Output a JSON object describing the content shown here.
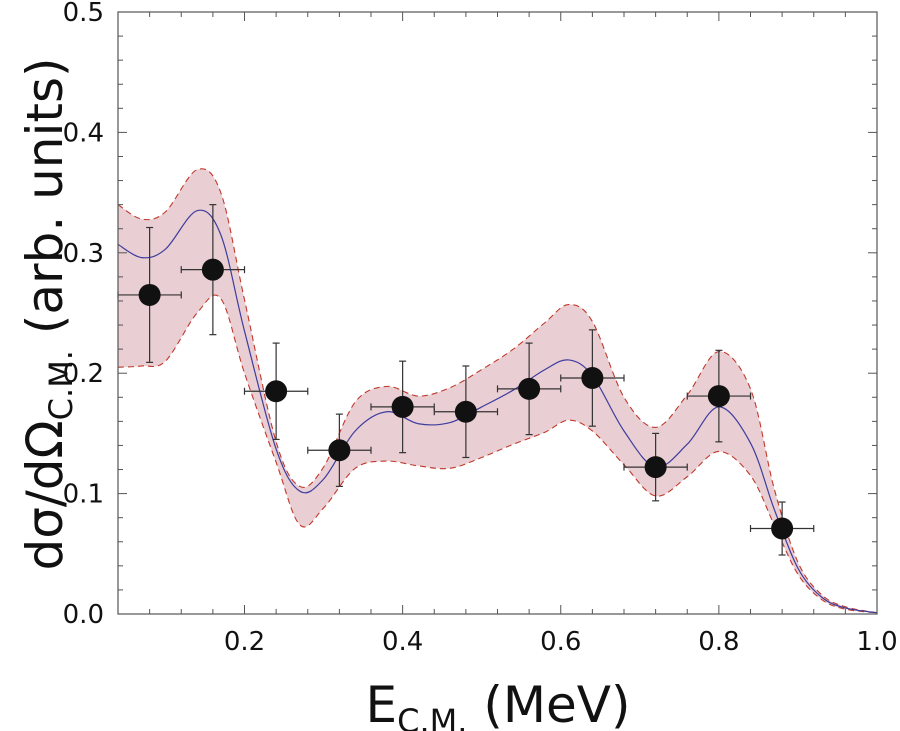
{
  "chart_data": {
    "type": "scatter",
    "xlabel": {
      "main": "E",
      "sub": "C.M.",
      "rest": " (MeV)"
    },
    "ylabel": {
      "main": "dσ/dΩ",
      "sub": "C.M.",
      "rest": " (arb. units)"
    },
    "xlim": [
      0.04,
      1.0
    ],
    "ylim": [
      0.0,
      0.5
    ],
    "x_ticks": [
      0.2,
      0.4,
      0.6,
      0.8,
      1.0
    ],
    "x_tick_labels": [
      "0.2",
      "0.4",
      "0.6",
      "0.8",
      "1.0"
    ],
    "y_ticks": [
      0.0,
      0.1,
      0.2,
      0.3,
      0.4,
      0.5
    ],
    "y_tick_labels": [
      "0.0",
      "0.1",
      "0.2",
      "0.3",
      "0.4",
      "0.5"
    ],
    "points": [
      {
        "x": 0.08,
        "y": 0.265,
        "xerr": 0.04,
        "yerr": 0.056
      },
      {
        "x": 0.16,
        "y": 0.286,
        "xerr": 0.04,
        "yerr": 0.054
      },
      {
        "x": 0.24,
        "y": 0.185,
        "xerr": 0.04,
        "yerr": 0.04
      },
      {
        "x": 0.32,
        "y": 0.136,
        "xerr": 0.04,
        "yerr": 0.03
      },
      {
        "x": 0.4,
        "y": 0.172,
        "xerr": 0.04,
        "yerr": 0.038
      },
      {
        "x": 0.48,
        "y": 0.168,
        "xerr": 0.04,
        "yerr": 0.038
      },
      {
        "x": 0.56,
        "y": 0.187,
        "xerr": 0.04,
        "yerr": 0.038
      },
      {
        "x": 0.64,
        "y": 0.196,
        "xerr": 0.04,
        "yerr": 0.04
      },
      {
        "x": 0.72,
        "y": 0.122,
        "xerr": 0.04,
        "yerr": 0.028
      },
      {
        "x": 0.8,
        "y": 0.181,
        "xerr": 0.04,
        "yerr": 0.038
      },
      {
        "x": 0.88,
        "y": 0.071,
        "xerr": 0.04,
        "yerr": 0.022
      }
    ],
    "fit_curve": {
      "x": [
        0.04,
        0.07,
        0.1,
        0.14,
        0.17,
        0.2,
        0.24,
        0.27,
        0.3,
        0.34,
        0.38,
        0.42,
        0.46,
        0.5,
        0.54,
        0.58,
        0.61,
        0.64,
        0.68,
        0.72,
        0.76,
        0.8,
        0.84,
        0.87,
        0.9,
        0.93,
        0.96,
        1.0
      ],
      "y": [
        0.307,
        0.296,
        0.303,
        0.335,
        0.315,
        0.235,
        0.137,
        0.102,
        0.112,
        0.152,
        0.168,
        0.158,
        0.159,
        0.172,
        0.186,
        0.203,
        0.211,
        0.198,
        0.152,
        0.122,
        0.141,
        0.172,
        0.142,
        0.087,
        0.038,
        0.014,
        0.005,
        0.001
      ]
    },
    "upper_band": {
      "x": [
        0.04,
        0.07,
        0.1,
        0.14,
        0.17,
        0.2,
        0.24,
        0.27,
        0.3,
        0.34,
        0.38,
        0.42,
        0.46,
        0.5,
        0.54,
        0.58,
        0.61,
        0.64,
        0.68,
        0.72,
        0.76,
        0.8,
        0.84,
        0.87,
        0.9,
        0.93,
        0.96,
        1.0
      ],
      "y": [
        0.34,
        0.328,
        0.334,
        0.369,
        0.35,
        0.261,
        0.143,
        0.106,
        0.122,
        0.176,
        0.189,
        0.181,
        0.188,
        0.203,
        0.22,
        0.242,
        0.257,
        0.243,
        0.18,
        0.155,
        0.182,
        0.218,
        0.187,
        0.104,
        0.043,
        0.016,
        0.006,
        0.001
      ]
    },
    "lower_band": {
      "x": [
        0.04,
        0.07,
        0.1,
        0.14,
        0.17,
        0.2,
        0.24,
        0.27,
        0.3,
        0.34,
        0.38,
        0.42,
        0.46,
        0.5,
        0.54,
        0.58,
        0.61,
        0.64,
        0.68,
        0.72,
        0.76,
        0.8,
        0.84,
        0.87,
        0.9,
        0.93,
        0.96,
        1.0
      ],
      "y": [
        0.205,
        0.206,
        0.21,
        0.25,
        0.262,
        0.2,
        0.126,
        0.074,
        0.088,
        0.121,
        0.127,
        0.123,
        0.121,
        0.13,
        0.141,
        0.151,
        0.161,
        0.152,
        0.124,
        0.098,
        0.114,
        0.135,
        0.115,
        0.074,
        0.033,
        0.012,
        0.004,
        0.001
      ]
    },
    "colors": {
      "band_fill": "#e9ced3",
      "band_edge": "#c0392b",
      "fit_line": "#3d3d9e",
      "marker": "#111111",
      "errorbar": "#333333",
      "axes": "#555555"
    }
  }
}
